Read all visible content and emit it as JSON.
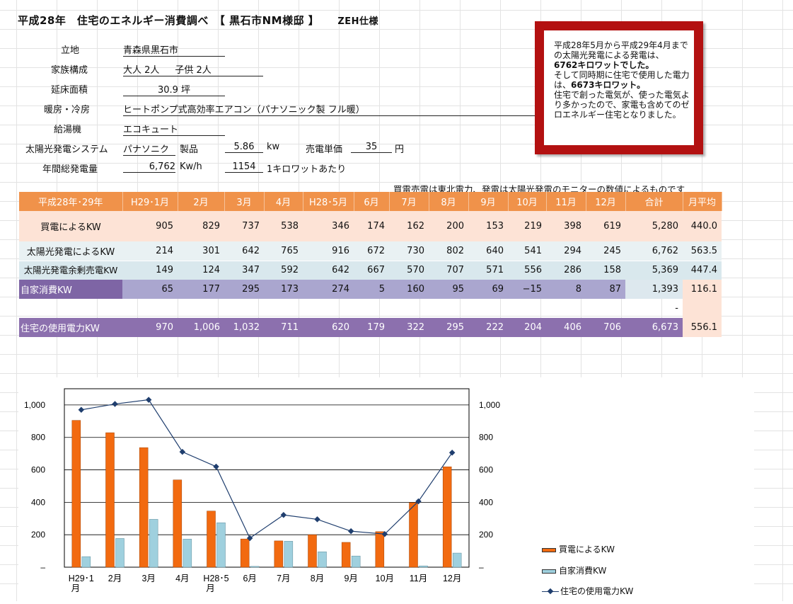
{
  "title": "平成28年　住宅のエネルギー消費調べ　【 黒石市NM様邸 】",
  "title_spec": "ZEH仕様",
  "info": {
    "location_label": "立地",
    "location_value": "青森県黒石市",
    "family_label": "家族構成",
    "family_adults": "大人 2人",
    "family_children": "子供 2人",
    "floor_label": "延床面積",
    "floor_value": "30.9",
    "floor_unit": "坪",
    "hvac_label": "暖房・冷房",
    "hvac_value": "ヒートポンプ式高効率エアコン（パナソニック製 フル暖）",
    "water_label": "給湯機",
    "water_value": "エコキュート",
    "solar_label": "太陽光発電システム",
    "solar_maker": "パナソニク",
    "solar_product_label": "製品",
    "solar_kw": "5.86",
    "solar_kw_unit": "kw",
    "sell_price_label": "売電単価",
    "sell_price": "35",
    "sell_price_unit": "円",
    "annual_label": "年間総発電量",
    "annual_value": "6,762",
    "annual_unit": "Kw/h",
    "annual_per": "1154",
    "annual_per_label": "1キロワットあたり"
  },
  "note": {
    "line1": "平成28年5月から平成29年4月までの太陽光発電による発電は、",
    "value1": "6762キロワットでした。",
    "line2": "そして同時期に住宅で使用した電力は、",
    "value2": "6673キロワット。",
    "line3": "住宅で創った電気が、使った電気より多かったので、家電も含めてのゼロエネルギー住宅となりました。"
  },
  "source_note": "買電売電は東北電力、発電は太陽光発電のモニターの数値によるものです",
  "table": {
    "header": [
      "平成28年･29年",
      "H29･1月",
      "2月",
      "3月",
      "4月",
      "H28･5月",
      "6月",
      "7月",
      "8月",
      "9月",
      "10月",
      "11月",
      "12月",
      "合計",
      "月平均"
    ],
    "rows": {
      "buy": [
        "買電によるKW",
        "905",
        "829",
        "737",
        "538",
        "346",
        "174",
        "162",
        "200",
        "153",
        "219",
        "398",
        "619",
        "5,280",
        "440.0"
      ],
      "solar": [
        "太陽光発電によるKW",
        "214",
        "301",
        "642",
        "765",
        "916",
        "672",
        "730",
        "802",
        "640",
        "541",
        "294",
        "245",
        "6,762",
        "563.5"
      ],
      "sell": [
        "太陽光発電余剰売電KW",
        "149",
        "124",
        "347",
        "592",
        "642",
        "667",
        "570",
        "707",
        "571",
        "556",
        "286",
        "158",
        "5,369",
        "447.4"
      ],
      "self": [
        "自家消費KW",
        "65",
        "177",
        "295",
        "173",
        "274",
        "5",
        "160",
        "95",
        "69",
        "−15",
        "8",
        "87",
        "1,393",
        "116.1"
      ],
      "blank_total": "-",
      "use": [
        "住宅の使用電力KW",
        "970",
        "1,006",
        "1,032",
        "711",
        "620",
        "179",
        "322",
        "295",
        "222",
        "204",
        "406",
        "706",
        "6,673",
        "556.1"
      ]
    }
  },
  "colors": {
    "buy": "#f26a10",
    "self": "#9fd0de",
    "use_line": "#1f3e6e",
    "header": "#f0924a",
    "box": "#b31111"
  },
  "chart_data": {
    "type": "bar+line",
    "categories": [
      "H29･1月",
      "2月",
      "3月",
      "4月",
      "H28･5月",
      "6月",
      "7月",
      "8月",
      "9月",
      "10月",
      "11月",
      "12月"
    ],
    "series": [
      {
        "name": "買電によるKW",
        "type": "bar",
        "axis": "left",
        "values": [
          905,
          829,
          737,
          538,
          346,
          174,
          162,
          200,
          153,
          219,
          398,
          619
        ]
      },
      {
        "name": "自家消費KW",
        "type": "bar",
        "axis": "left",
        "values": [
          65,
          177,
          295,
          173,
          274,
          5,
          160,
          95,
          69,
          -15,
          8,
          87
        ]
      },
      {
        "name": "住宅の使用電力KW",
        "type": "line",
        "axis": "right",
        "values": [
          970,
          1006,
          1032,
          711,
          620,
          179,
          322,
          295,
          222,
          204,
          406,
          706
        ]
      }
    ],
    "ylim": [
      0,
      1100
    ],
    "yticks": [
      "–",
      "200",
      "400",
      "600",
      "800",
      "1,000"
    ],
    "grid": true,
    "legend": "bottom-right"
  }
}
